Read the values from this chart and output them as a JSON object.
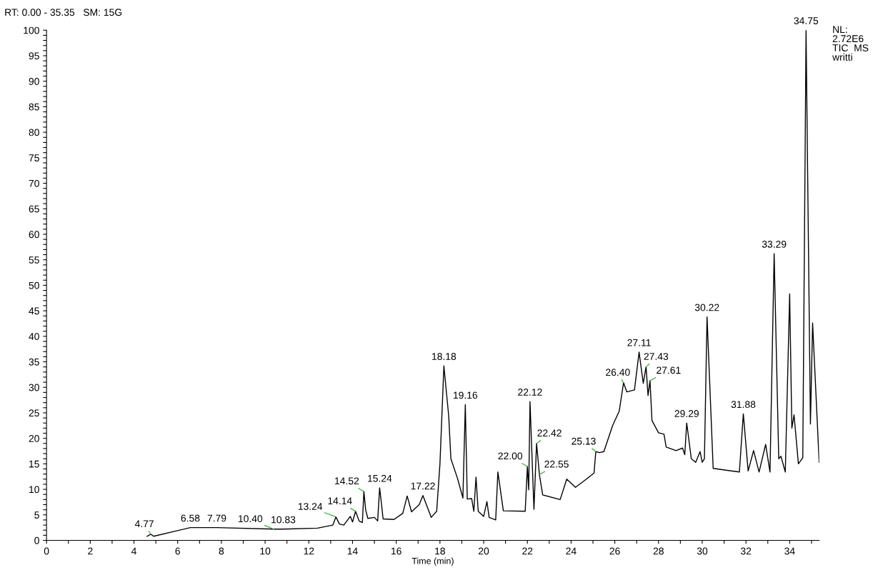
{
  "chart_data": {
    "type": "line",
    "xlabel": "Time (min)",
    "xlim": [
      0,
      35.35
    ],
    "ylim": [
      0,
      100
    ],
    "xticks": [
      0,
      {
        "value": 1,
        "label": null
      },
      2,
      {
        "value": 3,
        "label": null
      },
      4,
      {
        "value": 5,
        "label": null
      },
      6,
      {
        "value": 7,
        "label": null
      },
      8,
      {
        "value": 9,
        "label": null
      },
      10,
      {
        "value": 11,
        "label": null
      },
      12,
      {
        "value": 13,
        "label": null
      },
      14,
      {
        "value": 15,
        "label": null
      },
      16,
      {
        "value": 17,
        "label": null
      },
      18,
      {
        "value": 19,
        "label": null
      },
      20,
      {
        "value": 21,
        "label": null
      },
      22,
      {
        "value": 23,
        "label": null
      },
      24,
      {
        "value": 25,
        "label": null
      },
      26,
      {
        "value": 27,
        "label": null
      },
      28,
      {
        "value": 29,
        "label": null
      },
      30,
      {
        "value": 31,
        "label": null
      },
      32,
      {
        "value": 33,
        "label": null
      },
      34,
      {
        "value": 35,
        "label": null
      }
    ],
    "yticks": [
      0,
      {
        "value": 1,
        "label": null
      },
      {
        "value": 2,
        "label": null
      },
      {
        "value": 3,
        "label": null
      },
      {
        "value": 4,
        "label": null
      },
      5,
      {
        "value": 6,
        "label": null
      },
      {
        "value": 7,
        "label": null
      },
      {
        "value": 8,
        "label": null
      },
      {
        "value": 9,
        "label": null
      },
      10,
      {
        "value": 11,
        "label": null
      },
      {
        "value": 12,
        "label": null
      },
      {
        "value": 13,
        "label": null
      },
      {
        "value": 14,
        "label": null
      },
      15,
      {
        "value": 16,
        "label": null
      },
      {
        "value": 17,
        "label": null
      },
      {
        "value": 18,
        "label": null
      },
      {
        "value": 19,
        "label": null
      },
      20,
      {
        "value": 21,
        "label": null
      },
      {
        "value": 22,
        "label": null
      },
      {
        "value": 23,
        "label": null
      },
      {
        "value": 24,
        "label": null
      },
      25,
      {
        "value": 26,
        "label": null
      },
      {
        "value": 27,
        "label": null
      },
      {
        "value": 28,
        "label": null
      },
      {
        "value": 29,
        "label": null
      },
      30,
      {
        "value": 31,
        "label": null
      },
      {
        "value": 32,
        "label": null
      },
      {
        "value": 33,
        "label": null
      },
      {
        "value": 34,
        "label": null
      },
      35,
      {
        "value": 36,
        "label": null
      },
      {
        "value": 37,
        "label": null
      },
      {
        "value": 38,
        "label": null
      },
      {
        "value": 39,
        "label": null
      },
      40,
      {
        "value": 41,
        "label": null
      },
      {
        "value": 42,
        "label": null
      },
      {
        "value": 43,
        "label": null
      },
      {
        "value": 44,
        "label": null
      },
      45,
      {
        "value": 46,
        "label": null
      },
      {
        "value": 47,
        "label": null
      },
      {
        "value": 48,
        "label": null
      },
      {
        "value": 49,
        "label": null
      },
      50,
      {
        "value": 51,
        "label": null
      },
      {
        "value": 52,
        "label": null
      },
      {
        "value": 53,
        "label": null
      },
      {
        "value": 54,
        "label": null
      },
      55,
      {
        "value": 56,
        "label": null
      },
      {
        "value": 57,
        "label": null
      },
      {
        "value": 58,
        "label": null
      },
      {
        "value": 59,
        "label": null
      },
      60,
      {
        "value": 61,
        "label": null
      },
      {
        "value": 62,
        "label": null
      },
      {
        "value": 63,
        "label": null
      },
      {
        "value": 64,
        "label": null
      },
      65,
      {
        "value": 66,
        "label": null
      },
      {
        "value": 67,
        "label": null
      },
      {
        "value": 68,
        "label": null
      },
      {
        "value": 69,
        "label": null
      },
      70,
      {
        "value": 71,
        "label": null
      },
      {
        "value": 72,
        "label": null
      },
      {
        "value": 73,
        "label": null
      },
      {
        "value": 74,
        "label": null
      },
      75,
      {
        "value": 76,
        "label": null
      },
      {
        "value": 77,
        "label": null
      },
      {
        "value": 78,
        "label": null
      },
      {
        "value": 79,
        "label": null
      },
      80,
      {
        "value": 81,
        "label": null
      },
      {
        "value": 82,
        "label": null
      },
      {
        "value": 83,
        "label": null
      },
      {
        "value": 84,
        "label": null
      },
      85,
      {
        "value": 86,
        "label": null
      },
      {
        "value": 87,
        "label": null
      },
      {
        "value": 88,
        "label": null
      },
      {
        "value": 89,
        "label": null
      },
      90,
      {
        "value": 91,
        "label": null
      },
      {
        "value": 92,
        "label": null
      },
      {
        "value": 93,
        "label": null
      },
      {
        "value": 94,
        "label": null
      },
      95,
      {
        "value": 96,
        "label": null
      },
      {
        "value": 97,
        "label": null
      },
      {
        "value": 98,
        "label": null
      },
      {
        "value": 99,
        "label": null
      },
      100
    ],
    "grid": false,
    "legend": false,
    "marker": "none",
    "line_style": "solid",
    "series": [
      {
        "color": "#000000",
        "x": [
          4.6,
          4.77,
          4.9,
          6.58,
          7.79,
          10.4,
          10.83,
          12.4,
          13.1,
          13.24,
          13.4,
          13.6,
          13.9,
          14.0,
          14.14,
          14.3,
          14.45,
          14.52,
          14.6,
          14.7,
          15.0,
          15.15,
          15.24,
          15.4,
          15.9,
          16.3,
          16.5,
          16.7,
          17.05,
          17.22,
          17.6,
          17.85,
          18.0,
          18.18,
          18.4,
          18.5,
          18.8,
          19.05,
          19.16,
          19.25,
          19.45,
          19.55,
          19.65,
          19.75,
          20.0,
          20.15,
          20.25,
          20.55,
          20.65,
          20.9,
          21.9,
          22.0,
          22.06,
          22.12,
          22.3,
          22.42,
          22.55,
          22.7,
          23.5,
          23.8,
          24.2,
          24.7,
          25.05,
          25.13,
          25.3,
          25.5,
          25.9,
          26.2,
          26.4,
          26.55,
          26.9,
          27.11,
          27.3,
          27.43,
          27.52,
          27.61,
          27.7,
          28.0,
          28.25,
          28.35,
          28.8,
          29.1,
          29.2,
          29.29,
          29.5,
          29.7,
          29.9,
          30.0,
          30.1,
          30.22,
          30.5,
          31.7,
          31.88,
          32.1,
          32.35,
          32.6,
          32.9,
          33.1,
          33.29,
          33.5,
          33.6,
          33.8,
          34.0,
          34.1,
          34.2,
          34.4,
          34.6,
          34.75,
          34.95,
          35.05,
          35.35
        ],
        "values": [
          0.8,
          1.2,
          0.8,
          2.5,
          2.5,
          2.2,
          2.2,
          2.4,
          3.0,
          4.6,
          3.2,
          3.0,
          4.7,
          3.6,
          5.7,
          3.8,
          3.5,
          9.6,
          6.0,
          4.3,
          4.5,
          3.8,
          10.3,
          4.2,
          4.1,
          5.3,
          8.7,
          5.6,
          7.0,
          8.8,
          4.5,
          5.7,
          15.0,
          34.2,
          24.4,
          16.0,
          12.2,
          8.3,
          26.6,
          8.1,
          8.2,
          5.7,
          12.4,
          5.7,
          4.7,
          7.6,
          4.5,
          4.0,
          13.4,
          5.8,
          5.7,
          14.5,
          9.9,
          27.2,
          6.1,
          19.0,
          12.9,
          8.9,
          8.0,
          12.0,
          10.4,
          12.0,
          13.2,
          17.4,
          17.2,
          17.4,
          22.5,
          25.3,
          30.9,
          29.1,
          29.5,
          36.9,
          30.8,
          34.0,
          28.4,
          31.3,
          23.5,
          21.1,
          20.8,
          18.3,
          17.6,
          18.1,
          16.8,
          23.0,
          16.0,
          15.3,
          17.4,
          15.3,
          16.0,
          43.8,
          14.1,
          13.4,
          24.8,
          13.6,
          17.6,
          13.4,
          18.8,
          13.4,
          56.2,
          16.0,
          16.5,
          13.4,
          48.3,
          22.0,
          24.6,
          15.0,
          16.2,
          100,
          22.8,
          42.6,
          15.3
        ]
      }
    ],
    "annotations": [
      {
        "text": "4.77",
        "x": 4.77,
        "y": 1.2
      },
      {
        "text": "6.58",
        "x": 6.58,
        "y": 2.5
      },
      {
        "text": "7.79",
        "x": 7.79,
        "y": 2.5
      },
      {
        "text": "10.40",
        "x": 10.4,
        "y": 2.2
      },
      {
        "text": "10.83",
        "x": 10.83,
        "y": 2.2
      },
      {
        "text": "13.24",
        "x": 13.24,
        "y": 4.6
      },
      {
        "text": "14.14",
        "x": 14.14,
        "y": 5.7
      },
      {
        "text": "14.52",
        "x": 14.52,
        "y": 9.6
      },
      {
        "text": "15.24",
        "x": 15.24,
        "y": 10.3
      },
      {
        "text": "17.22",
        "x": 17.22,
        "y": 8.8
      },
      {
        "text": "18.18",
        "x": 18.18,
        "y": 34.2
      },
      {
        "text": "19.16",
        "x": 19.16,
        "y": 26.6
      },
      {
        "text": "22.00",
        "x": 22.0,
        "y": 14.5
      },
      {
        "text": "22.12",
        "x": 22.12,
        "y": 27.2
      },
      {
        "text": "22.42",
        "x": 22.42,
        "y": 19.0
      },
      {
        "text": "22.55",
        "x": 22.55,
        "y": 12.9
      },
      {
        "text": "25.13",
        "x": 25.13,
        "y": 17.4
      },
      {
        "text": "26.40",
        "x": 26.4,
        "y": 30.9
      },
      {
        "text": "27.11",
        "x": 27.11,
        "y": 36.9
      },
      {
        "text": "27.43",
        "x": 27.43,
        "y": 34.0
      },
      {
        "text": "27.61",
        "x": 27.61,
        "y": 31.3
      },
      {
        "text": "29.29",
        "x": 29.29,
        "y": 23.0
      },
      {
        "text": "30.22",
        "x": 30.22,
        "y": 43.8
      },
      {
        "text": "31.88",
        "x": 31.88,
        "y": 24.8
      },
      {
        "text": "33.29",
        "x": 33.29,
        "y": 56.2
      },
      {
        "text": "34.75",
        "x": 34.75,
        "y": 100
      },
      "RT: 0.00 - 35.35   SM: 15G",
      "NL:\n2.72E6\nTIC  MS\nwritti"
    ]
  }
}
